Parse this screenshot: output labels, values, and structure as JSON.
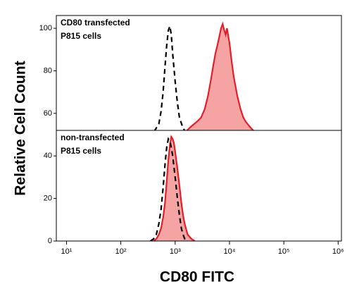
{
  "chart_data": [
    {
      "type": "line",
      "log_x": true,
      "ylabel": "Relative Cell Count",
      "annotation": [
        "CD80 transfected",
        "P815 cells"
      ],
      "xlim": [
        6.5,
        1150000
      ],
      "ylim": [
        52,
        106
      ],
      "yticks": [
        60,
        80,
        100
      ],
      "series": [
        {
          "color": "#000000",
          "style": "dashed",
          "fill": false,
          "x": [
            300,
            400,
            500,
            550,
            600,
            650,
            700,
            750,
            800,
            850,
            900,
            1000,
            1100,
            1200,
            1400,
            1600
          ],
          "values": [
            50,
            51,
            55,
            61,
            70,
            82,
            92,
            99,
            101,
            97,
            88,
            75,
            65,
            58,
            53,
            51
          ]
        },
        {
          "color": "#e0202a",
          "style": "solid",
          "fill": "#f6a3a3",
          "x": [
            1500,
            2000,
            2500,
            3000,
            3500,
            4000,
            4500,
            5000,
            5500,
            6000,
            6500,
            7000,
            7500,
            8000,
            8500,
            9000,
            10000,
            11000,
            12000,
            14000,
            16000,
            18000,
            20000,
            25000,
            30000
          ],
          "values": [
            51,
            54,
            56,
            58,
            62,
            68,
            75,
            82,
            88,
            92,
            96,
            100,
            102,
            99,
            97,
            100,
            93,
            84,
            77,
            68,
            62,
            58,
            56,
            53,
            51
          ]
        }
      ]
    },
    {
      "type": "line",
      "log_x": true,
      "xlabel": "CD80 FITC",
      "annotation": [
        "non-transfected",
        "P815 cells"
      ],
      "xlim": [
        6.5,
        1150000
      ],
      "ylim": [
        0,
        52
      ],
      "yticks": [
        0,
        20,
        40
      ],
      "xticks": [
        {
          "value": 10,
          "label": "10¹"
        },
        {
          "value": 100,
          "label": "10²"
        },
        {
          "value": 1000,
          "label": "10³"
        },
        {
          "value": 10000,
          "label": "10⁴"
        },
        {
          "value": 100000,
          "label": "10⁵"
        },
        {
          "value": 1000000,
          "label": "10⁶"
        }
      ],
      "series": [
        {
          "color": "#e0202a",
          "style": "solid",
          "fill": "#f6a3a3",
          "x": [
            400,
            450,
            500,
            550,
            600,
            650,
            700,
            750,
            800,
            850,
            900,
            950,
            1000,
            1100,
            1200,
            1300,
            1400,
            1500,
            1700,
            2000,
            2300
          ],
          "values": [
            0,
            1,
            3,
            6,
            11,
            18,
            28,
            38,
            45,
            49,
            48,
            46,
            42,
            34,
            26,
            18,
            12,
            8,
            3,
            1,
            0
          ]
        },
        {
          "color": "#000000",
          "style": "dashed",
          "fill": false,
          "x": [
            350,
            400,
            450,
            500,
            550,
            600,
            650,
            700,
            750,
            800,
            850,
            900,
            1000,
            1100,
            1200,
            1300,
            1400,
            1500,
            1600
          ],
          "values": [
            0,
            1,
            3,
            8,
            15,
            25,
            36,
            44,
            48,
            47,
            44,
            40,
            30,
            20,
            12,
            6,
            3,
            1,
            0
          ]
        }
      ]
    }
  ]
}
